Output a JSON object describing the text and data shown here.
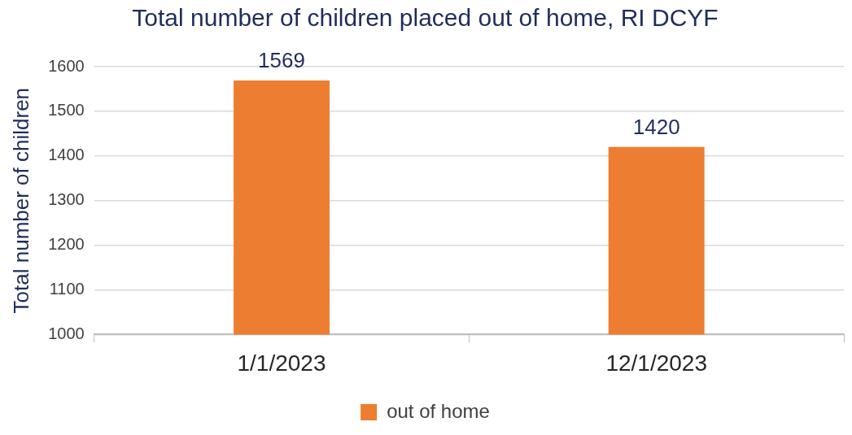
{
  "chart_data": {
    "type": "bar",
    "title": "Total number of children placed out of home, RI DCYF",
    "ylabel": "Total number of children",
    "categories": [
      "1/1/2023",
      "12/1/2023"
    ],
    "series": [
      {
        "name": "out of home",
        "color": "#ed7d31",
        "values": [
          1569,
          1420
        ]
      }
    ],
    "ylim": [
      1000,
      1600
    ],
    "yticks": [
      1000,
      1100,
      1200,
      1300,
      1400,
      1500,
      1600
    ],
    "grid": "y",
    "legend": "bottom",
    "data_labels": true
  }
}
